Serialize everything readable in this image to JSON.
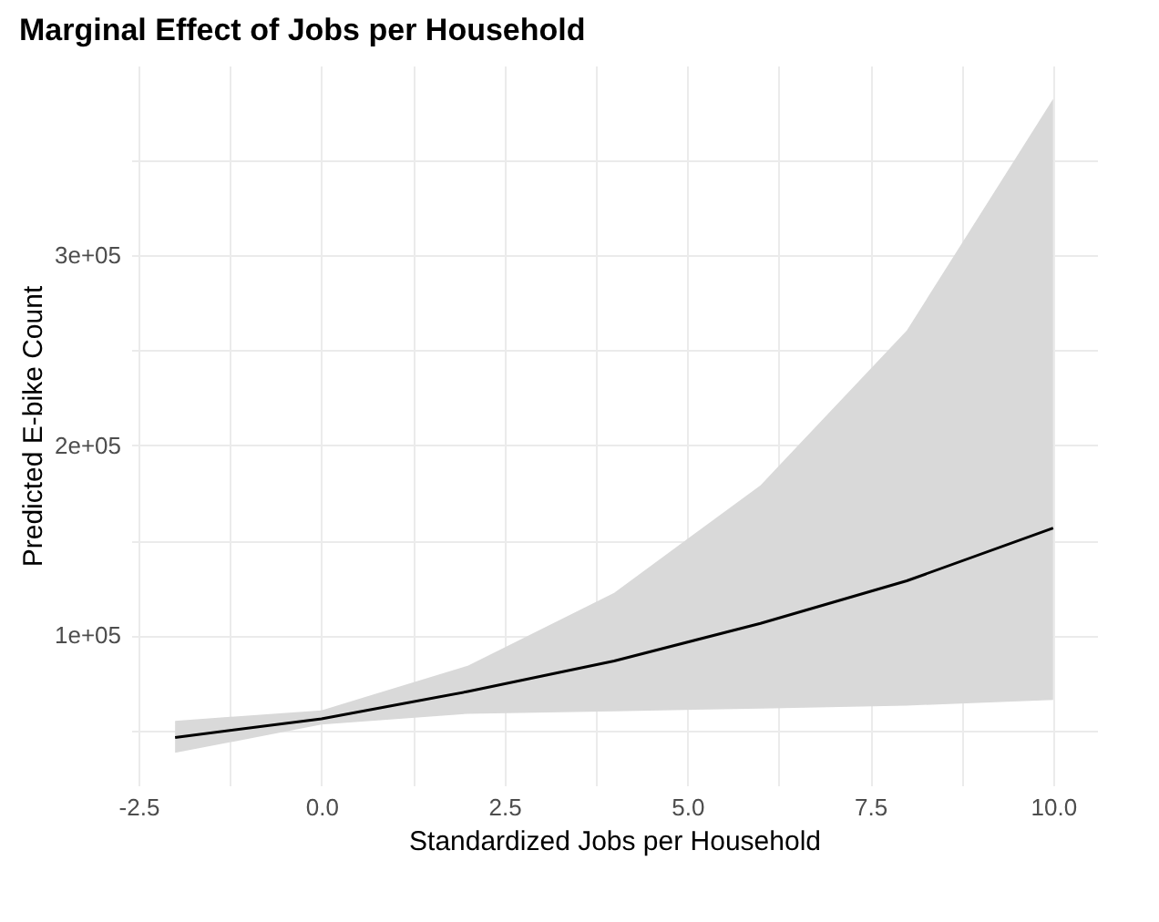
{
  "chart_data": {
    "type": "line",
    "title": "Marginal Effect of Jobs per Household",
    "xlabel": "Standardized Jobs per Household",
    "ylabel": "Predicted E-bike Count",
    "x": [
      -2,
      0,
      2,
      4,
      6,
      8,
      10
    ],
    "series": [
      {
        "color": "#000000",
        "values": [
          46200,
          56000,
          70400,
          86500,
          106300,
          128700,
          156500
        ],
        "lower": [
          38100,
          53000,
          58700,
          60000,
          61400,
          63000,
          66000
        ],
        "upper": [
          55000,
          60500,
          84000,
          122400,
          179000,
          260500,
          382500
        ]
      }
    ],
    "xlim": [
      -2.6,
      10.6
    ],
    "xticks": [
      {
        "value": -2.5,
        "label": "-2.5"
      },
      {
        "value": -1.25,
        "label": null
      },
      {
        "value": 0,
        "label": "0.0"
      },
      {
        "value": 1.25,
        "label": null
      },
      {
        "value": 2.5,
        "label": "2.5"
      },
      {
        "value": 3.75,
        "label": null
      },
      {
        "value": 5,
        "label": "5.0"
      },
      {
        "value": 6.25,
        "label": null
      },
      {
        "value": 7.5,
        "label": "7.5"
      },
      {
        "value": 8.75,
        "label": null
      },
      {
        "value": 10,
        "label": "10.0"
      }
    ],
    "ylim": [
      21000,
      400000
    ],
    "yticks": [
      {
        "value": 50000,
        "label": null
      },
      {
        "value": 100000,
        "label": "1e+05"
      },
      {
        "value": 150000,
        "label": null
      },
      {
        "value": 200000,
        "label": "2e+05"
      },
      {
        "value": 250000,
        "label": null
      },
      {
        "value": 300000,
        "label": "3e+05"
      },
      {
        "value": 350000,
        "label": null
      }
    ],
    "grid": true,
    "line_style": "solid"
  }
}
